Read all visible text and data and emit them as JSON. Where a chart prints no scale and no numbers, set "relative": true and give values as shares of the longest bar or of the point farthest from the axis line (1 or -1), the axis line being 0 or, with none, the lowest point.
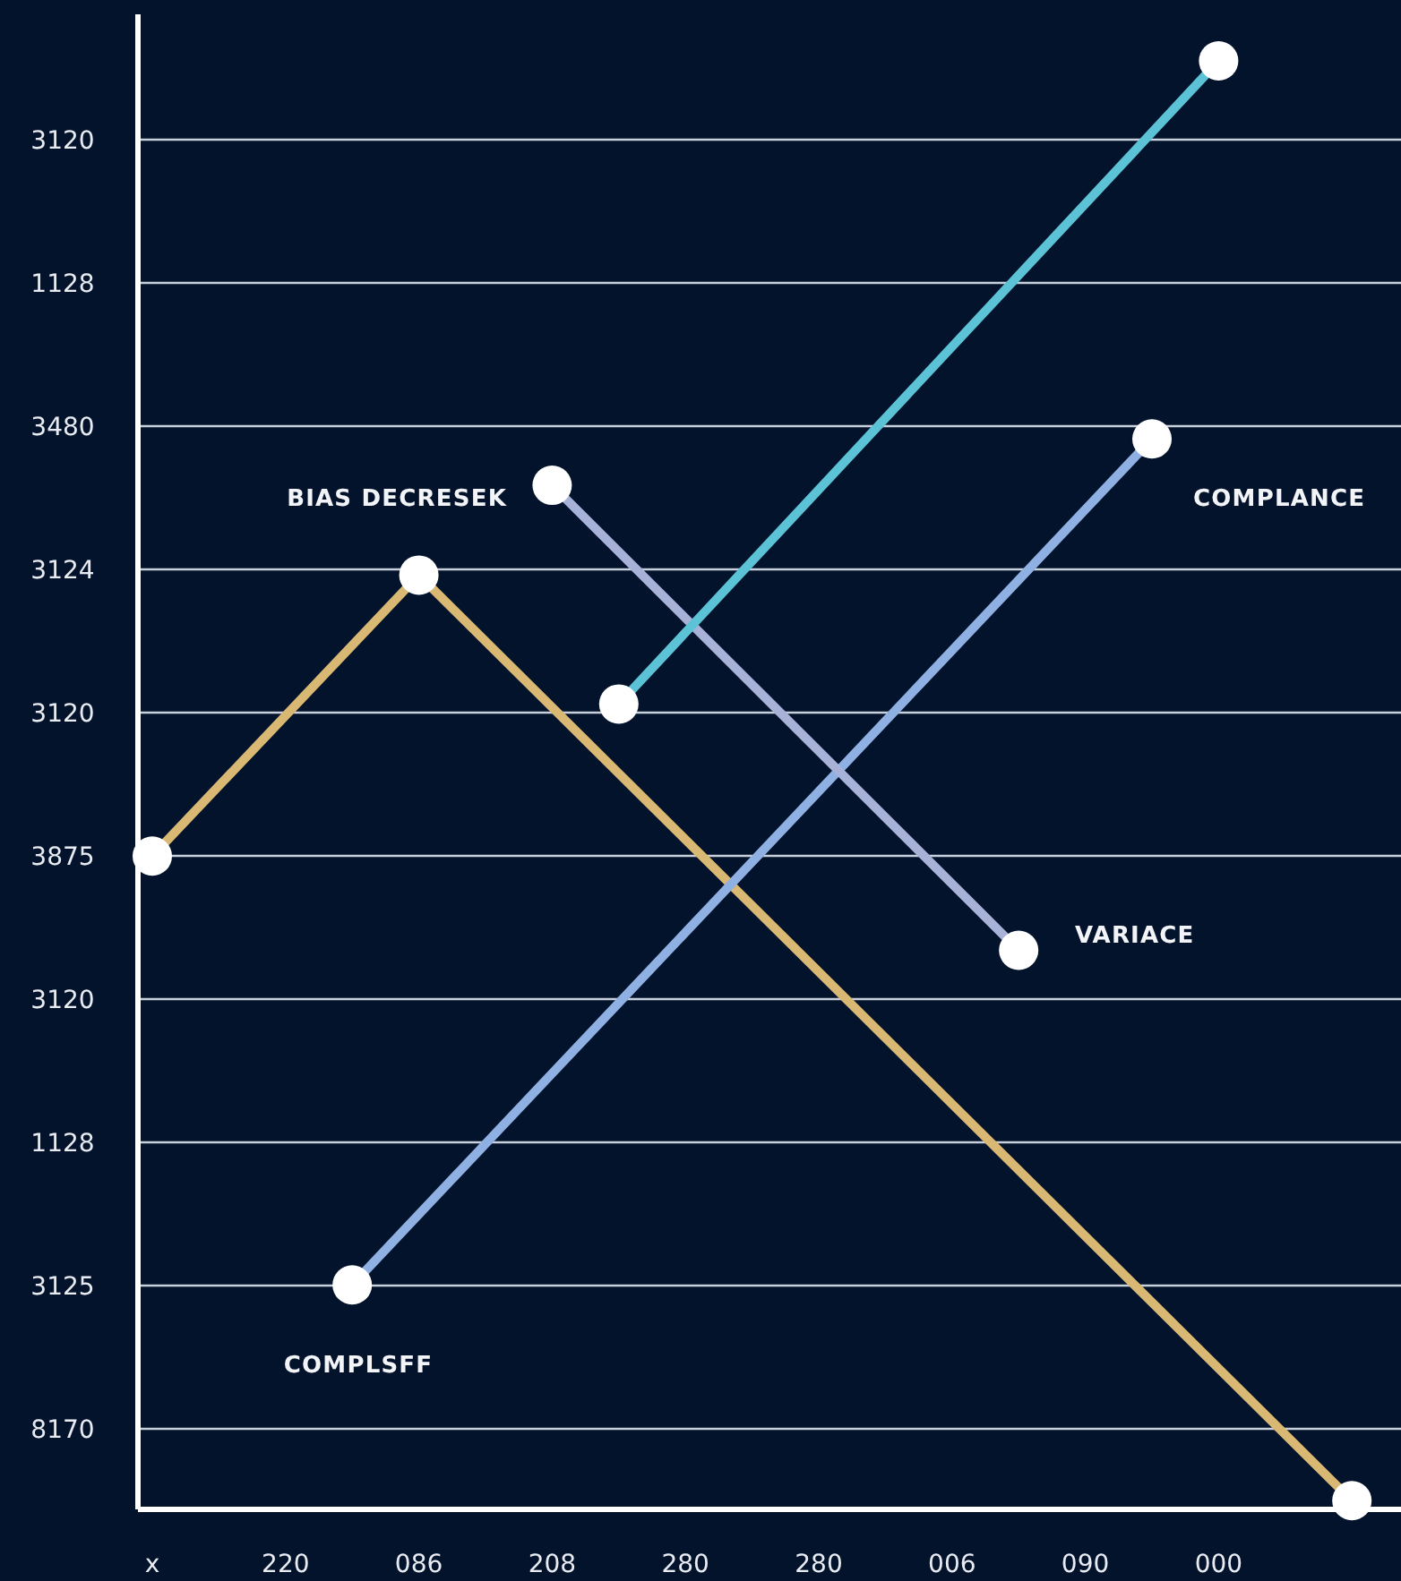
{
  "chart_data": {
    "type": "line",
    "relative": true,
    "categories": [
      "x",
      null,
      "220",
      null,
      "086",
      null,
      "208",
      null,
      "280",
      null,
      "280",
      null,
      "006",
      null,
      "090",
      null,
      "000",
      null,
      null
    ],
    "series": [
      {
        "color": "#d8b872",
        "values": [
          0.451,
          null,
          null,
          null,
          0.645,
          null,
          null,
          null,
          null,
          null,
          null,
          null,
          null,
          null,
          null,
          null,
          null,
          null,
          0.006
        ]
      },
      {
        "color": "#8fb0e2",
        "values": [
          null,
          null,
          null,
          0.155,
          null,
          null,
          null,
          null,
          null,
          null,
          null,
          null,
          null,
          null,
          null,
          0.739,
          null,
          null,
          null
        ]
      },
      {
        "color": "#a8b2d8",
        "values": [
          null,
          null,
          null,
          null,
          null,
          null,
          0.707,
          null,
          null,
          null,
          null,
          null,
          null,
          0.386,
          null,
          null,
          null,
          null,
          null
        ]
      },
      {
        "color": "#5cc3d6",
        "values": [
          null,
          null,
          null,
          null,
          null,
          null,
          null,
          0.556,
          null,
          null,
          null,
          null,
          null,
          null,
          null,
          null,
          1,
          null,
          null
        ]
      }
    ],
    "annotations": [
      "BIAS DECRESEK",
      "VARIACE",
      "COMPLANCE",
      "COMPLSFF",
      "3120",
      "1128",
      "3480",
      "3124",
      "3120",
      "3875",
      "3120",
      "1128",
      "3125",
      "8170"
    ],
    "grid": "y",
    "marker": "circle",
    "line_style": "solid"
  }
}
